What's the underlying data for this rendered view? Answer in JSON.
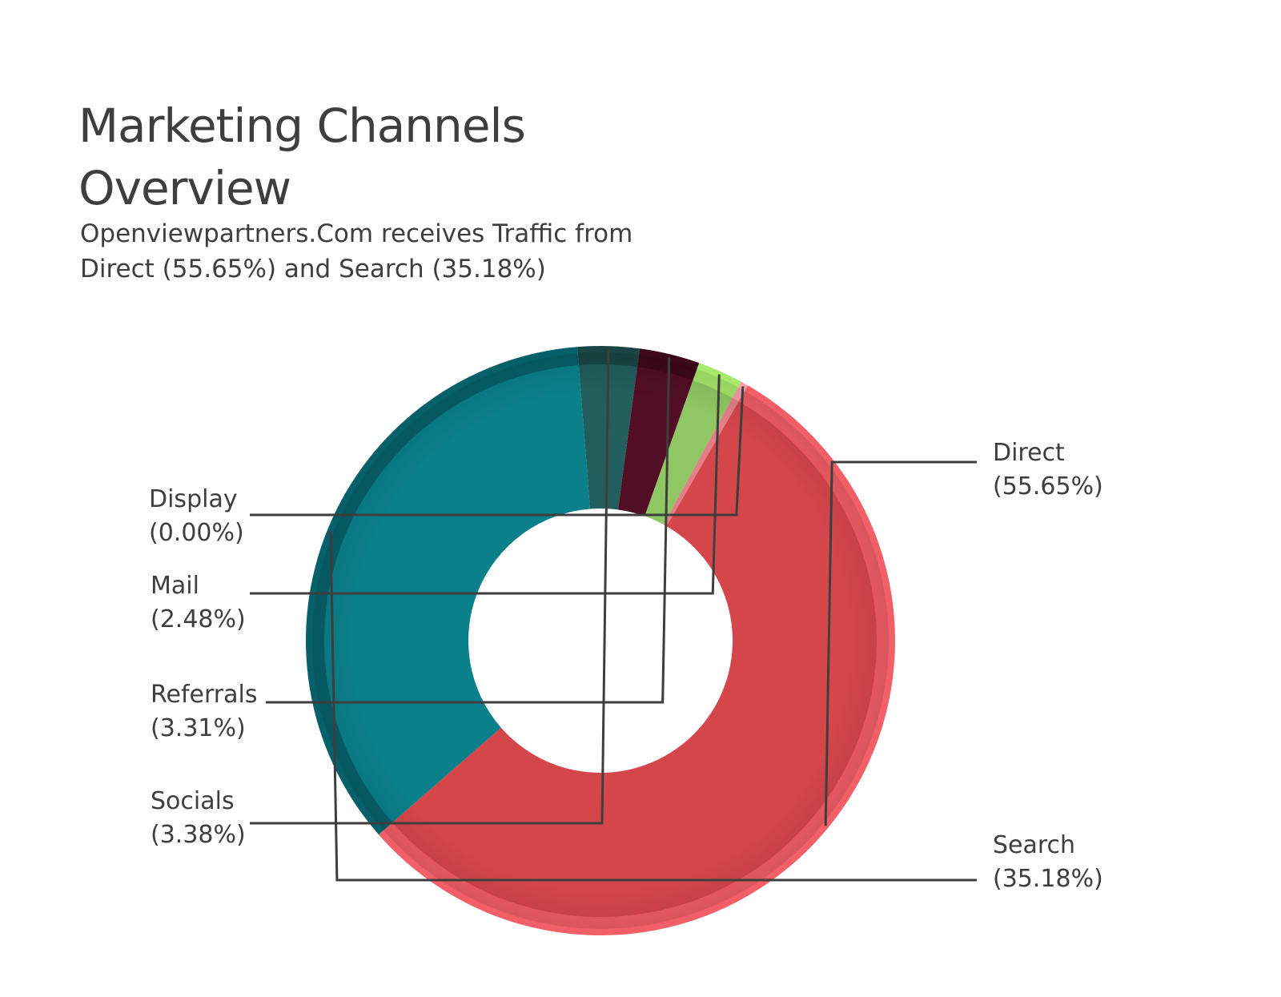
{
  "title_line1": "Marketing Channels",
  "title_line2": "Overview",
  "subtitle_line1": "Openviewpartners.Com receives Traffic from",
  "subtitle_line2": "Direct (55.65%) and Search (35.18%)",
  "chart_data": {
    "type": "pie",
    "title": "Marketing Channels Overview",
    "donut": true,
    "slices": [
      {
        "name": "Direct",
        "value": 55.65,
        "label": "(55.65%)",
        "color": "#d5464b",
        "rim": "#f25f66"
      },
      {
        "name": "Search",
        "value": 35.18,
        "label": "(35.18%)",
        "color": "#0a808a",
        "rim": "#06606a"
      },
      {
        "name": "Socials",
        "value": 3.38,
        "label": "(3.38%)",
        "color": "#215e5c",
        "rim": "#174644"
      },
      {
        "name": "Referrals",
        "value": 3.31,
        "label": "(3.31%)",
        "color": "#510e24",
        "rim": "#3c0919"
      },
      {
        "name": "Mail",
        "value": 2.48,
        "label": "(2.48%)",
        "color": "#8fc863",
        "rim": "#a7ea6b"
      },
      {
        "name": "Display",
        "value": 0.0,
        "label": "(0.00%)",
        "color": "#e2808a",
        "rim": "#f7a1aa"
      }
    ]
  }
}
